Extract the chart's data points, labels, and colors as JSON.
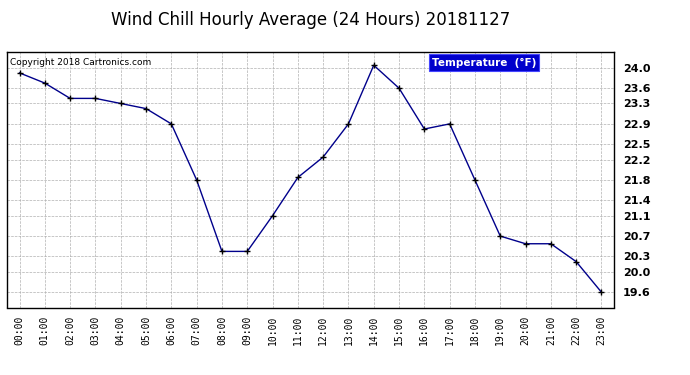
{
  "title": "Wind Chill Hourly Average (24 Hours) 20181127",
  "copyright": "Copyright 2018 Cartronics.com",
  "legend_label": "Temperature  (°F)",
  "hours": [
    "00:00",
    "01:00",
    "02:00",
    "03:00",
    "04:00",
    "05:00",
    "06:00",
    "07:00",
    "08:00",
    "09:00",
    "10:00",
    "11:00",
    "12:00",
    "13:00",
    "14:00",
    "15:00",
    "16:00",
    "17:00",
    "18:00",
    "19:00",
    "20:00",
    "21:00",
    "22:00",
    "23:00"
  ],
  "values": [
    23.9,
    23.7,
    23.4,
    23.4,
    23.3,
    23.2,
    22.9,
    21.8,
    20.4,
    20.4,
    21.1,
    21.85,
    22.25,
    22.9,
    24.05,
    23.6,
    22.8,
    22.9,
    21.8,
    20.7,
    20.55,
    20.55,
    20.2,
    19.6
  ],
  "ylim_min": 19.3,
  "ylim_max": 24.3,
  "yticks": [
    19.6,
    20.0,
    20.3,
    20.7,
    21.1,
    21.4,
    21.8,
    22.2,
    22.5,
    22.9,
    23.3,
    23.6,
    24.0
  ],
  "line_color": "#00008B",
  "marker": "+",
  "marker_color": "#000000",
  "bg_color": "#ffffff",
  "plot_bg_color": "#ffffff",
  "grid_color": "#b0b0b0",
  "title_fontsize": 12,
  "legend_bg": "#0000cc",
  "legend_text_color": "#ffffff"
}
